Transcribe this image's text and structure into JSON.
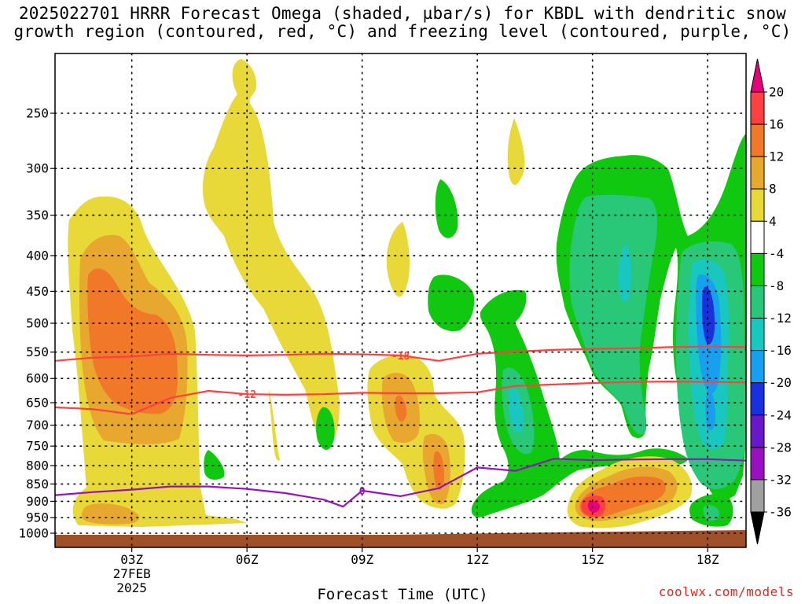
{
  "title": "2025022701 HRRR Forecast Omega (shaded, µbar/s) for KBDL with dendritic snow\ngrowth region (contoured, red, °C) and freezing level (contoured, purple, °C)",
  "credit": "coolwx.com/models",
  "chart_data": {
    "type": "heatmap",
    "title": "2025022701 HRRR Forecast Omega (shaded, µbar/s) for KBDL with dendritic snow growth region (contoured, red, °C) and freezing level (contoured, purple, °C)",
    "xlabel": "Forecast Time (UTC)",
    "ylabel": "",
    "x_range_hours": [
      1,
      19
    ],
    "y_range_hpa": [
      1000,
      200
    ],
    "y_scale": "log",
    "x_ticks": [
      {
        "hour": 3,
        "label": "03Z",
        "sub": [
          "27FEB",
          "2025"
        ]
      },
      {
        "hour": 6,
        "label": "06Z"
      },
      {
        "hour": 9,
        "label": "09Z"
      },
      {
        "hour": 12,
        "label": "12Z"
      },
      {
        "hour": 15,
        "label": "15Z"
      },
      {
        "hour": 18,
        "label": "18Z"
      }
    ],
    "y_ticks": [
      250,
      300,
      350,
      400,
      450,
      500,
      550,
      600,
      650,
      700,
      750,
      800,
      850,
      900,
      950,
      1000
    ],
    "grid": true,
    "colorbar": {
      "labels": [
        "20",
        "16",
        "12",
        "8",
        "4",
        "-4",
        "-8",
        "-12",
        "-16",
        "-20",
        "-24",
        "-28",
        "-32",
        "-36"
      ],
      "colors": [
        "#e8007a",
        "#ff4040",
        "#f07828",
        "#e8a830",
        "#e8d838",
        "#ffffff",
        "#10c810",
        "#28c878",
        "#18c8c0",
        "#18a0f0",
        "#1830e0",
        "#6818c8",
        "#9810c0",
        "#a0a0a0",
        "#000000"
      ]
    },
    "series": [
      {
        "name": "-18",
        "color": "#ff4040",
        "x": [
          1,
          2,
          3,
          4,
          5,
          6,
          7,
          8,
          9,
          10,
          11,
          12,
          13,
          14,
          15,
          16,
          17,
          18,
          19
        ],
        "y": [
          566,
          560,
          558,
          553,
          555,
          556,
          555,
          553,
          554,
          556,
          566,
          553,
          549,
          546,
          544,
          543,
          541,
          540,
          541
        ]
      },
      {
        "name": "-12",
        "color": "#ff4040",
        "x": [
          1,
          2,
          3,
          4,
          5,
          6,
          7,
          8,
          9,
          10,
          11,
          12,
          13,
          14,
          15,
          16,
          17,
          18,
          19
        ],
        "y": [
          660,
          664,
          675,
          640,
          625,
          632,
          633,
          632,
          629,
          630,
          630,
          628,
          615,
          612,
          609,
          607,
          606,
          607,
          608
        ]
      },
      {
        "name": "0",
        "color": "#9810c0",
        "x": [
          1,
          2,
          3,
          4,
          5,
          6,
          7,
          8,
          8.5,
          9,
          10,
          11,
          12,
          13,
          14,
          15,
          16,
          17,
          18,
          19
        ],
        "y": [
          882,
          873,
          866,
          857,
          857,
          864,
          876,
          895,
          916,
          869,
          885,
          862,
          805,
          814,
          782,
          786,
          784,
          783,
          783,
          787
        ]
      }
    ],
    "terrain_color": "#a05028"
  }
}
